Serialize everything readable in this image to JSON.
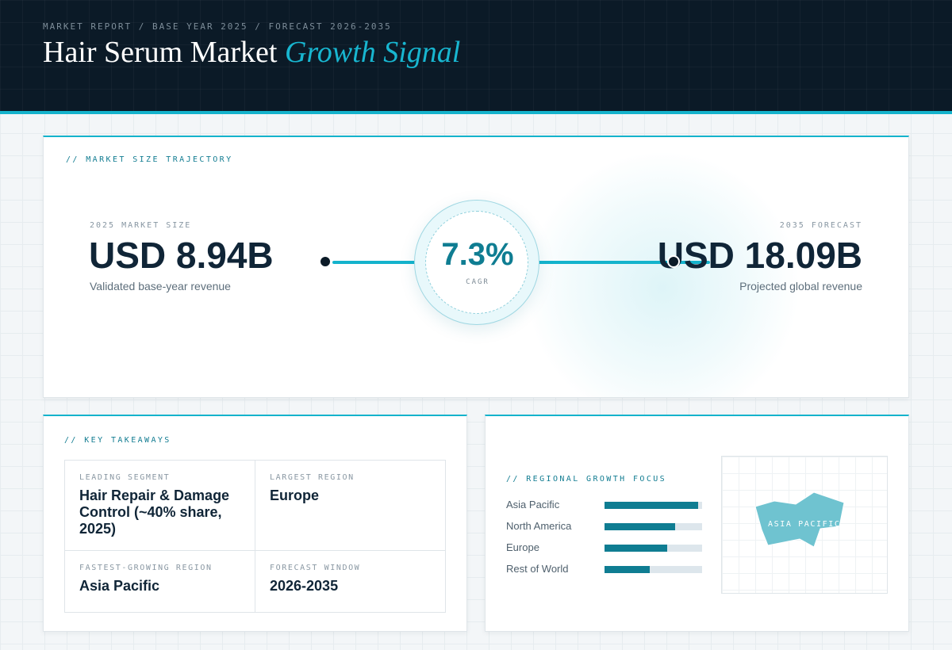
{
  "header": {
    "eyebrow": "MARKET REPORT / BASE YEAR 2025 / FORECAST 2026-2035",
    "title_main": "Hair Serum Market",
    "title_accent": "Growth Signal"
  },
  "trajectory": {
    "label": "// MARKET SIZE TRAJECTORY",
    "start": {
      "small_label": "2025 MARKET SIZE",
      "value": "USD 8.94B",
      "caption": "Validated base-year revenue"
    },
    "cagr": {
      "value": "7.3%",
      "label": "CAGR"
    },
    "end": {
      "small_label": "2035 FORECAST",
      "value": "USD 18.09B",
      "caption": "Projected global revenue"
    }
  },
  "takeaways": {
    "label": "// KEY TAKEAWAYS",
    "items": [
      {
        "key": "LEADING SEGMENT",
        "value": "Hair Repair & Damage Control (~40% share, 2025)"
      },
      {
        "key": "LARGEST REGION",
        "value": "Europe"
      },
      {
        "key": "FASTEST-GROWING REGION",
        "value": "Asia Pacific"
      },
      {
        "key": "FORECAST WINDOW",
        "value": "2026-2035"
      }
    ]
  },
  "regional": {
    "label": "// REGIONAL GROWTH FOCUS",
    "rows": [
      {
        "name": "Asia Pacific",
        "level": 0.96
      },
      {
        "name": "North America",
        "level": 0.72
      },
      {
        "name": "Europe",
        "level": 0.64
      },
      {
        "name": "Rest of World",
        "level": 0.46
      }
    ],
    "map_label": "ASIA PACIFIC"
  },
  "colors": {
    "header_bg": "#0b1a27",
    "accent": "#14b3cc",
    "bar_fill": "#0f7d92",
    "map_shape": "#6fc3d0"
  }
}
